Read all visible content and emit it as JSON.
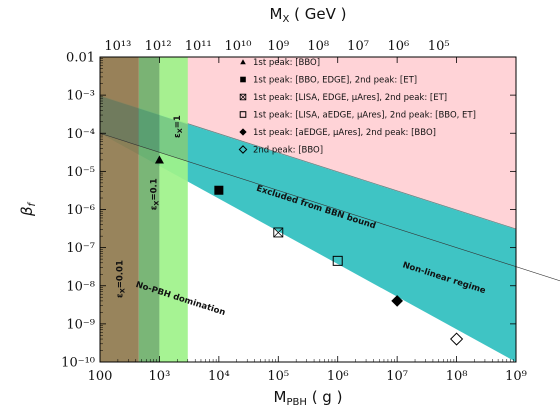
{
  "chart_data": {
    "type": "scatter",
    "x_axis": {
      "label": "M",
      "label_sub": "PBH",
      "label_unit": "( g )",
      "scale": "log",
      "range": [
        100,
        1000000000
      ],
      "tick_labels": [
        "100",
        "10³",
        "10⁴",
        "10⁵",
        "10⁶",
        "10⁷",
        "10⁸",
        "10⁹"
      ]
    },
    "y_axis": {
      "label": "β",
      "label_sub": "f",
      "scale": "log",
      "range": [
        1e-10,
        0.01
      ],
      "tick_labels": [
        "10⁻¹⁰",
        "10⁻⁹",
        "10⁻⁸",
        "10⁻⁷",
        "10⁻⁶",
        "10⁻⁵",
        "10⁻⁴",
        "10⁻³",
        "0.01"
      ]
    },
    "top_axis": {
      "label": "M",
      "label_sub": "X",
      "label_unit": "( GeV )",
      "tick_labels": [
        {
          "text": "10¹³",
          "at_mpbh": 200
        },
        {
          "text": "10¹²",
          "at_mpbh": 950
        },
        {
          "text": "10¹¹",
          "at_mpbh": 4500
        },
        {
          "text": "10¹⁰",
          "at_mpbh": 21000
        },
        {
          "text": "10⁹",
          "at_mpbh": 100000
        },
        {
          "text": "10⁸",
          "at_mpbh": 470000
        },
        {
          "text": "10⁷",
          "at_mpbh": 2200000
        },
        {
          "text": "10⁶",
          "at_mpbh": 10500000
        },
        {
          "text": "10⁵",
          "at_mpbh": 50000000
        }
      ]
    },
    "regions": {
      "bbn": {
        "name": "Excluded from BBN bound",
        "color": "#ffd3d7"
      },
      "nonlinear": {
        "name": "Non-linear regime",
        "color": "#7a7a7a"
      },
      "allowed": {
        "name": "",
        "color": "#3fc4c4"
      },
      "no_pbh": {
        "name": "No-PBH domination"
      }
    },
    "bands": [
      {
        "label": "ε",
        "label_sub": "X",
        "label_rest": "=0.01",
        "m_max": 450,
        "color": "#8f7a4e"
      },
      {
        "label": "ε",
        "label_sub": "X",
        "label_rest": "=0.1",
        "m_max": 1000,
        "color": "#6fb06b"
      },
      {
        "label": "ε",
        "label_sub": "X",
        "label_rest": "=1",
        "m_max": 3000,
        "color": "#9ef28a"
      }
    ],
    "points": [
      {
        "x": 1000,
        "y": 2e-05,
        "marker": "triangle",
        "legend": "1st peak: [BBO]"
      },
      {
        "x": 10000,
        "y": 3.2e-06,
        "marker": "square-filled",
        "legend": "1st peak: [BBO, EDGE], 2nd peak: [ET]"
      },
      {
        "x": 100000,
        "y": 2.5e-07,
        "marker": "square-crossed",
        "legend": "1st peak: [LISA, EDGE, μAres], 2nd peak: [ET]"
      },
      {
        "x": 1000000,
        "y": 4.5e-08,
        "marker": "square-open",
        "legend": "1st peak: [LISA, aEDGE, μAres], 2nd peak: [BBO, ET]"
      },
      {
        "x": 10000000,
        "y": 4e-09,
        "marker": "diamond-filled",
        "legend": "1st peak: [aEDGE, μAres], 2nd peak: [BBO]"
      },
      {
        "x": 100000000,
        "y": 4e-10,
        "marker": "diamond-open",
        "legend": "2nd peak: [BBO]"
      }
    ],
    "legend_position": "top-center",
    "grid": false
  }
}
